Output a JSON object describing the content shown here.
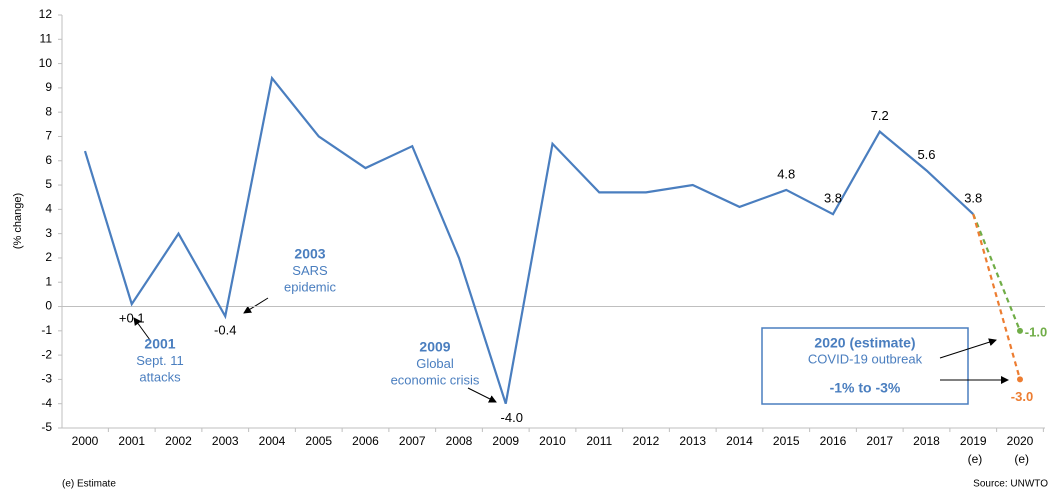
{
  "chart_data": {
    "type": "line",
    "y_label": "(% change)",
    "categories": [
      "2000",
      "2001",
      "2002",
      "2003",
      "2004",
      "2005",
      "2006",
      "2007",
      "2008",
      "2009",
      "2010",
      "2011",
      "2012",
      "2013",
      "2014",
      "2015",
      "2016",
      "2017",
      "2018",
      "2019 (e)",
      "2020 (e)"
    ],
    "series": [
      {
        "color": "#4a7ebf",
        "line_style": "solid",
        "values": [
          6.4,
          0.1,
          3.0,
          -0.4,
          9.4,
          7.0,
          5.7,
          6.6,
          2.0,
          -4.0,
          6.7,
          4.7,
          4.7,
          5.0,
          4.1,
          4.8,
          3.8,
          7.2,
          5.6,
          3.8,
          null
        ],
        "value_labels": [
          null,
          "+0.1",
          null,
          "-0.4",
          null,
          null,
          null,
          null,
          null,
          "-4.0",
          null,
          null,
          null,
          null,
          null,
          "4.8",
          "3.8",
          "7.2",
          "5.6",
          "3.8",
          null
        ]
      },
      {
        "color": "#70ad47",
        "line_style": "dashed",
        "values": [
          null,
          null,
          null,
          null,
          null,
          null,
          null,
          null,
          null,
          null,
          null,
          null,
          null,
          null,
          null,
          null,
          null,
          null,
          null,
          3.8,
          -1.0
        ],
        "value_labels": [
          null,
          null,
          null,
          null,
          null,
          null,
          null,
          null,
          null,
          null,
          null,
          null,
          null,
          null,
          null,
          null,
          null,
          null,
          null,
          null,
          "-1.0"
        ]
      },
      {
        "color": "#ed7d31",
        "line_style": "dashed",
        "values": [
          null,
          null,
          null,
          null,
          null,
          null,
          null,
          null,
          null,
          null,
          null,
          null,
          null,
          null,
          null,
          null,
          null,
          null,
          null,
          3.8,
          -3.0
        ],
        "value_labels": [
          null,
          null,
          null,
          null,
          null,
          null,
          null,
          null,
          null,
          null,
          null,
          null,
          null,
          null,
          null,
          null,
          null,
          null,
          null,
          null,
          "-3.0"
        ]
      }
    ],
    "ylim": [
      -5,
      12
    ],
    "yticks": [
      -5,
      -4,
      -3,
      -2,
      -1,
      0,
      1,
      2,
      3,
      4,
      5,
      6,
      7,
      8,
      9,
      10,
      11,
      12
    ],
    "annotations": [
      {
        "lines": [
          "2001",
          "Sept. 11",
          "attacks"
        ]
      },
      {
        "lines": [
          "2003",
          "SARS",
          "epidemic"
        ]
      },
      {
        "lines": [
          "2009",
          "Global",
          "economic crisis"
        ]
      },
      {
        "lines": [
          "2020 (estimate)",
          "COVID-19 outbreak",
          "-1% to -3%"
        ]
      }
    ],
    "footnote": "(e) Estimate",
    "source": "Source: UNWTO"
  }
}
